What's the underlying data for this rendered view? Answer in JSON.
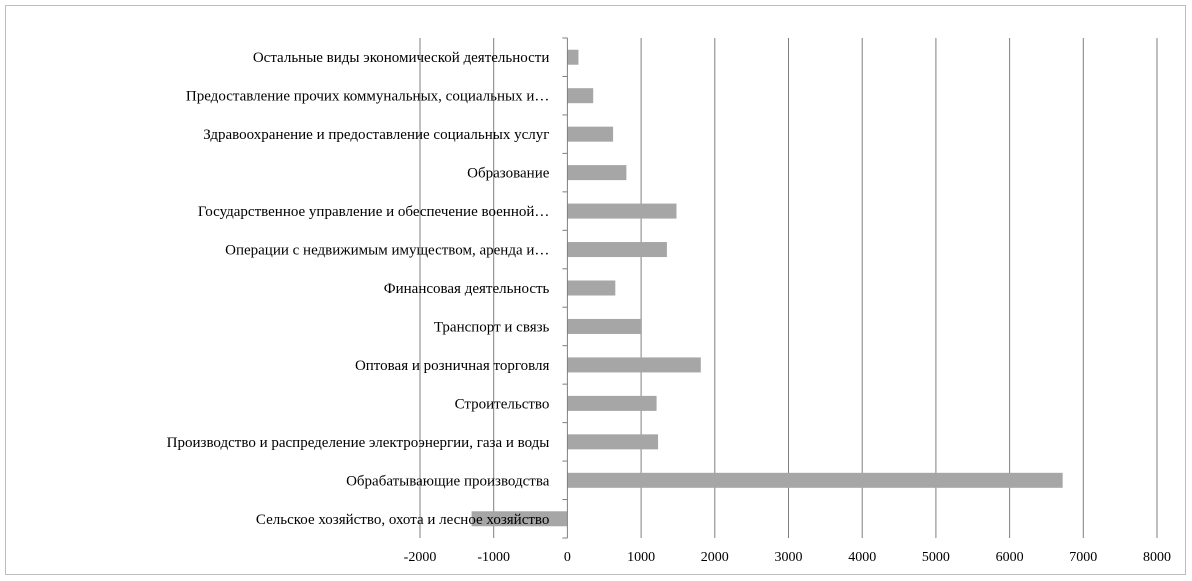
{
  "chart_data": {
    "type": "bar",
    "orientation": "horizontal",
    "categories": [
      "Остальные виды экономической деятельности",
      "Предоставление прочих коммунальных, социальных и…",
      "Здравоохранение и предоставление социальных услуг",
      "Образование",
      "Государственное управление и обеспечение военной…",
      "Операции с недвижимым имуществом, аренда и…",
      "Финансовая деятельность",
      "Транспорт и связь",
      "Оптовая и розничная торговля",
      "Строительство",
      "Производство и распределение электроэнергии, газа и воды",
      "Обрабатывающие производства",
      "Сельское хозяйство, охота и лесное хозяйство"
    ],
    "values": [
      150,
      350,
      620,
      800,
      1480,
      1350,
      650,
      1010,
      1810,
      1210,
      1230,
      6720,
      -1300
    ],
    "xlim": [
      -2000,
      8000
    ],
    "xticks": [
      "-2000",
      "-1000",
      "0",
      "1000",
      "2000",
      "3000",
      "4000",
      "5000",
      "6000",
      "7000",
      "8000"
    ],
    "grid": "vertical",
    "bar_color": "#a6a6a6",
    "grid_color": "#7f7f7f"
  }
}
